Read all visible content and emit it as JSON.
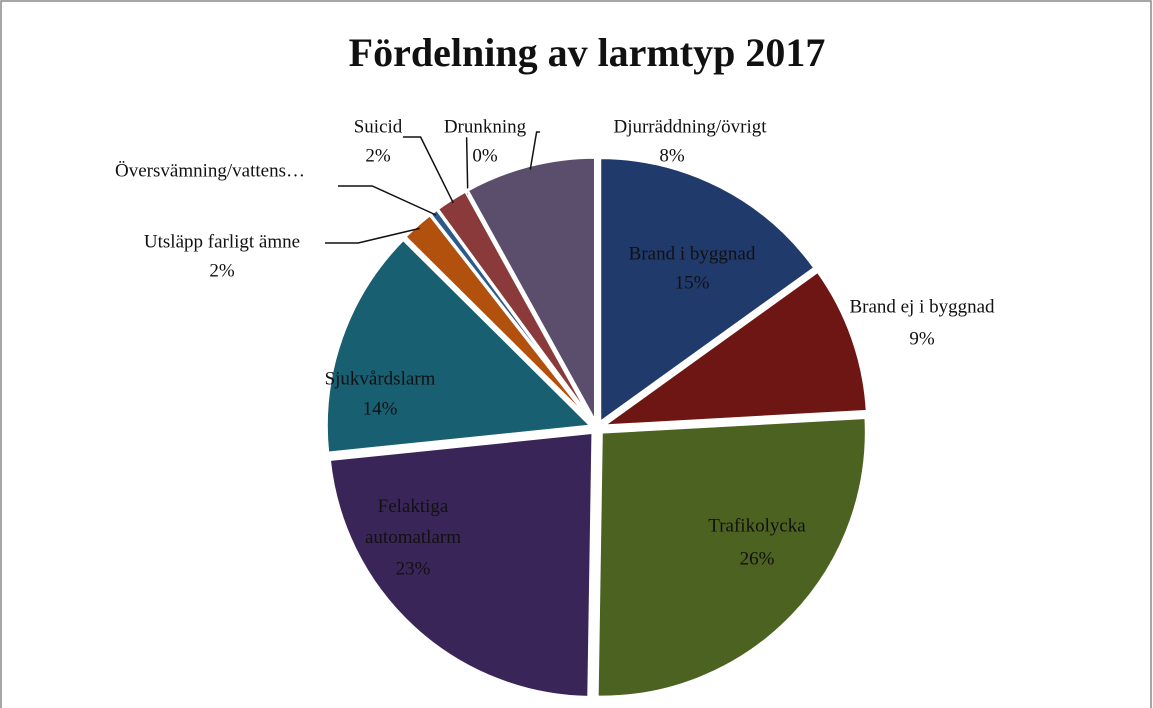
{
  "chart_data": {
    "type": "pie",
    "title": "Fördelning av larmtyp 2017",
    "categories": [
      "Brand i byggnad",
      "Brand ej i byggnad",
      "Trafikolycka",
      "Felaktiga automatlarm",
      "Sjukvårdslarm",
      "Utsläpp farligt ämne",
      "Översvämning/vattens…",
      "Suicid",
      "Drunkning",
      "Djurräddning/övrigt"
    ],
    "values": [
      15,
      9,
      26,
      23,
      14,
      2,
      0.5,
      2,
      0,
      8
    ],
    "value_labels": [
      "15%",
      "9%",
      "26%",
      "23%",
      "14%",
      "2%",
      null,
      "2%",
      "0%",
      "8%"
    ],
    "colors": [
      "#203a6b",
      "#6e1614",
      "#4c6220",
      "#3a2558",
      "#185f72",
      "#b2500e",
      "#2c5a8a",
      "#8a3a3a",
      "#60702e",
      "#5b4d6c"
    ]
  }
}
